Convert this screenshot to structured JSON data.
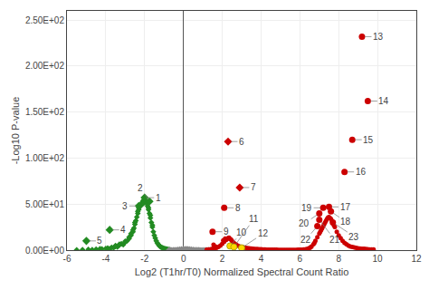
{
  "chart_data": {
    "type": "scatter",
    "xlabel": "Log2 (T1hr/T0) Normalized Spectral Count Ratio",
    "ylabel": "-Log10 P-value",
    "xlim": [
      -6,
      12
    ],
    "ylim": [
      0,
      260
    ],
    "xticks": [
      -6,
      -4,
      -2,
      0,
      2,
      4,
      6,
      8,
      10,
      12
    ],
    "yticks": [
      {
        "value": 0,
        "label": "0.00E+00"
      },
      {
        "value": 50,
        "label": "5.00E+01"
      },
      {
        "value": 100,
        "label": "1.00E+02"
      },
      {
        "value": 150,
        "label": "1.50E+02"
      },
      {
        "value": 200,
        "label": "2.00E+02"
      },
      {
        "value": 250,
        "label": "2.50E+02"
      }
    ],
    "grid": true,
    "series": [
      {
        "color": "#228B22",
        "marker": "diamond",
        "x": [
          -5.5,
          -5.2,
          -4.9,
          -4.7,
          -4.5,
          -4.3,
          -4.2,
          -4.0,
          -3.9,
          -3.8,
          -3.7,
          -3.6,
          -3.5,
          -3.4,
          -3.3,
          -3.2,
          -3.1,
          -3.0,
          -2.9,
          -2.8,
          -2.7,
          -2.6,
          -2.55,
          -2.5,
          -2.45,
          -2.4,
          -2.35,
          -2.3,
          -2.25,
          -2.2,
          -2.15,
          -2.1,
          -2.05,
          -2.0,
          -1.95,
          -1.9,
          -1.85,
          -1.8,
          -1.75,
          -1.7,
          -1.65,
          -1.6,
          -1.55,
          -1.5,
          -1.45,
          -1.4,
          -1.35,
          -1.3,
          -1.25,
          -1.2,
          -1.15,
          -1.1,
          -1.05,
          -1.0,
          -0.95,
          -0.9,
          -0.85,
          -0.8,
          -0.75,
          -0.7,
          -2.6,
          -2.7,
          -2.3,
          -2.0,
          -1.8,
          -3.5,
          -3.3,
          -3.0,
          -2.8,
          -2.5,
          -1.6,
          -1.7,
          -2.1,
          -2.35
        ],
        "values": [
          0.3,
          0.5,
          0.8,
          0.6,
          1.0,
          1.5,
          1.2,
          1.8,
          2.2,
          1.5,
          3.0,
          2.5,
          4.0,
          3.5,
          5.5,
          7.0,
          6.0,
          8.5,
          10.0,
          12.5,
          16.0,
          20.0,
          24.0,
          28.0,
          32.0,
          36.0,
          40.0,
          44.0,
          47.0,
          49.0,
          51.0,
          53.0,
          54.5,
          55.0,
          53.5,
          51.0,
          48.0,
          44.0,
          40.0,
          35.0,
          30.0,
          25.0,
          20.0,
          16.0,
          13.0,
          10.0,
          8.0,
          6.5,
          5.0,
          4.0,
          3.2,
          2.8,
          2.2,
          1.8,
          1.5,
          1.2,
          1.0,
          0.8,
          0.6,
          0.5,
          22.0,
          18.0,
          46.0,
          52.0,
          46.0,
          5.0,
          6.5,
          9.5,
          14.0,
          30.0,
          27.0,
          38.0,
          50.0,
          42.0
        ]
      },
      {
        "color": "#228B22",
        "marker": "diamond",
        "x": [
          -2.0,
          -1.75,
          -2.3,
          -3.8,
          -5.0
        ],
        "values": [
          57,
          53,
          48,
          22,
          10
        ],
        "labels": [
          "1",
          "2",
          "3",
          "4",
          "5"
        ]
      },
      {
        "color": "#888888",
        "marker": "diamond",
        "x": [
          -0.6,
          -0.5,
          -0.4,
          -0.3,
          -0.2,
          -0.1,
          0.0,
          0.1,
          0.2,
          0.3,
          0.4,
          0.5,
          0.6,
          0.7,
          0.8,
          0.9,
          1.0,
          1.1,
          1.2,
          1.3,
          -0.65,
          -0.7,
          -0.75
        ],
        "values": [
          0.3,
          0.5,
          0.6,
          0.8,
          1.0,
          1.2,
          1.4,
          1.5,
          1.4,
          1.2,
          1.0,
          0.8,
          0.6,
          0.5,
          0.4,
          0.3,
          0.3,
          0.2,
          0.2,
          0.2,
          0.2,
          0.2,
          0.15
        ]
      },
      {
        "color": "#CC0000",
        "marker": "circle",
        "x": [
          1.2,
          1.3,
          1.4,
          1.5,
          1.6,
          1.7,
          1.8,
          1.9,
          2.0,
          2.1,
          2.2,
          2.3,
          2.4,
          2.5,
          2.6,
          2.7,
          2.8,
          2.9,
          3.0,
          3.1,
          3.2,
          3.3,
          3.4,
          3.5,
          3.6,
          3.7,
          3.8,
          3.9,
          4.0,
          4.1,
          4.2,
          4.3,
          4.4,
          4.5,
          4.6,
          4.7,
          4.8,
          4.9,
          5.0,
          5.1,
          5.2,
          5.3,
          5.4,
          5.5,
          5.6,
          5.7,
          5.8,
          5.9,
          6.0,
          6.1,
          6.2,
          6.3,
          6.4,
          6.5,
          6.6,
          6.7,
          6.8,
          6.9,
          7.0,
          7.1,
          7.2,
          7.3,
          7.4,
          7.5,
          7.6,
          7.7,
          7.8,
          7.9,
          8.0,
          8.1,
          8.2,
          8.3,
          8.4,
          8.5,
          8.6,
          8.7,
          8.8,
          8.9,
          9.0,
          9.1,
          9.2,
          9.3,
          9.4,
          9.5,
          9.6,
          9.7,
          9.8,
          1.55,
          1.65,
          2.05,
          2.15,
          2.35,
          2.45,
          6.55,
          6.75,
          7.05,
          7.15,
          7.25,
          7.35,
          7.45,
          7.55,
          7.65,
          7.75
        ],
        "values": [
          0.5,
          0.8,
          1.0,
          1.5,
          2.0,
          2.5,
          3.5,
          5.0,
          7.0,
          9.0,
          11.0,
          13.0,
          12.0,
          10.0,
          8.0,
          6.5,
          5.0,
          4.0,
          3.5,
          3.0,
          2.5,
          2.2,
          2.0,
          1.8,
          1.5,
          1.3,
          1.2,
          1.0,
          0.9,
          0.8,
          0.7,
          0.6,
          0.5,
          0.5,
          0.4,
          0.4,
          0.4,
          0.3,
          0.3,
          0.3,
          0.3,
          0.3,
          0.3,
          0.3,
          0.3,
          0.3,
          0.3,
          0.4,
          0.5,
          0.6,
          0.8,
          1.0,
          1.5,
          2.5,
          4.0,
          6.5,
          10.0,
          14.0,
          18.0,
          22.0,
          26.0,
          30.0,
          34.0,
          36.0,
          34.0,
          30.0,
          25.0,
          20.0,
          16.0,
          13.0,
          10.0,
          8.0,
          6.5,
          5.0,
          4.0,
          3.5,
          3.0,
          2.5,
          2.0,
          1.8,
          1.5,
          1.5,
          1.2,
          1.0,
          0.8,
          0.8,
          0.8,
          6.0,
          4.0,
          10.5,
          12.5,
          13.5,
          11.5,
          3.0,
          8.0,
          20.0,
          24.0,
          28.0,
          32.0,
          35.5,
          35.0,
          32.0,
          27.0
        ]
      },
      {
        "color": "#CC0000",
        "marker": "circle",
        "x": [
          2.1,
          1.5,
          7.2,
          7.5,
          7.0,
          7.6,
          7.0,
          6.9,
          7.7,
          9.2,
          9.5,
          8.7,
          8.3
        ],
        "values": [
          46,
          20,
          46,
          47,
          40,
          42,
          33,
          26,
          30,
          232,
          162,
          120,
          85
        ],
        "labels": [
          "8",
          "9",
          "19",
          "17",
          "20",
          "18",
          "21",
          "22",
          "23",
          "13",
          "14",
          "15",
          "16"
        ]
      },
      {
        "color": "#CC0000",
        "marker": "diamond",
        "x": [
          2.3,
          2.9
        ],
        "values": [
          118,
          68
        ],
        "labels": [
          "6",
          "7"
        ]
      },
      {
        "color": "#FFD700",
        "marker": "circle",
        "x": [
          2.4,
          2.6,
          3.0
        ],
        "values": [
          4.5,
          3.5,
          2.5
        ],
        "labels": [
          "10",
          "11",
          "12"
        ]
      }
    ]
  }
}
